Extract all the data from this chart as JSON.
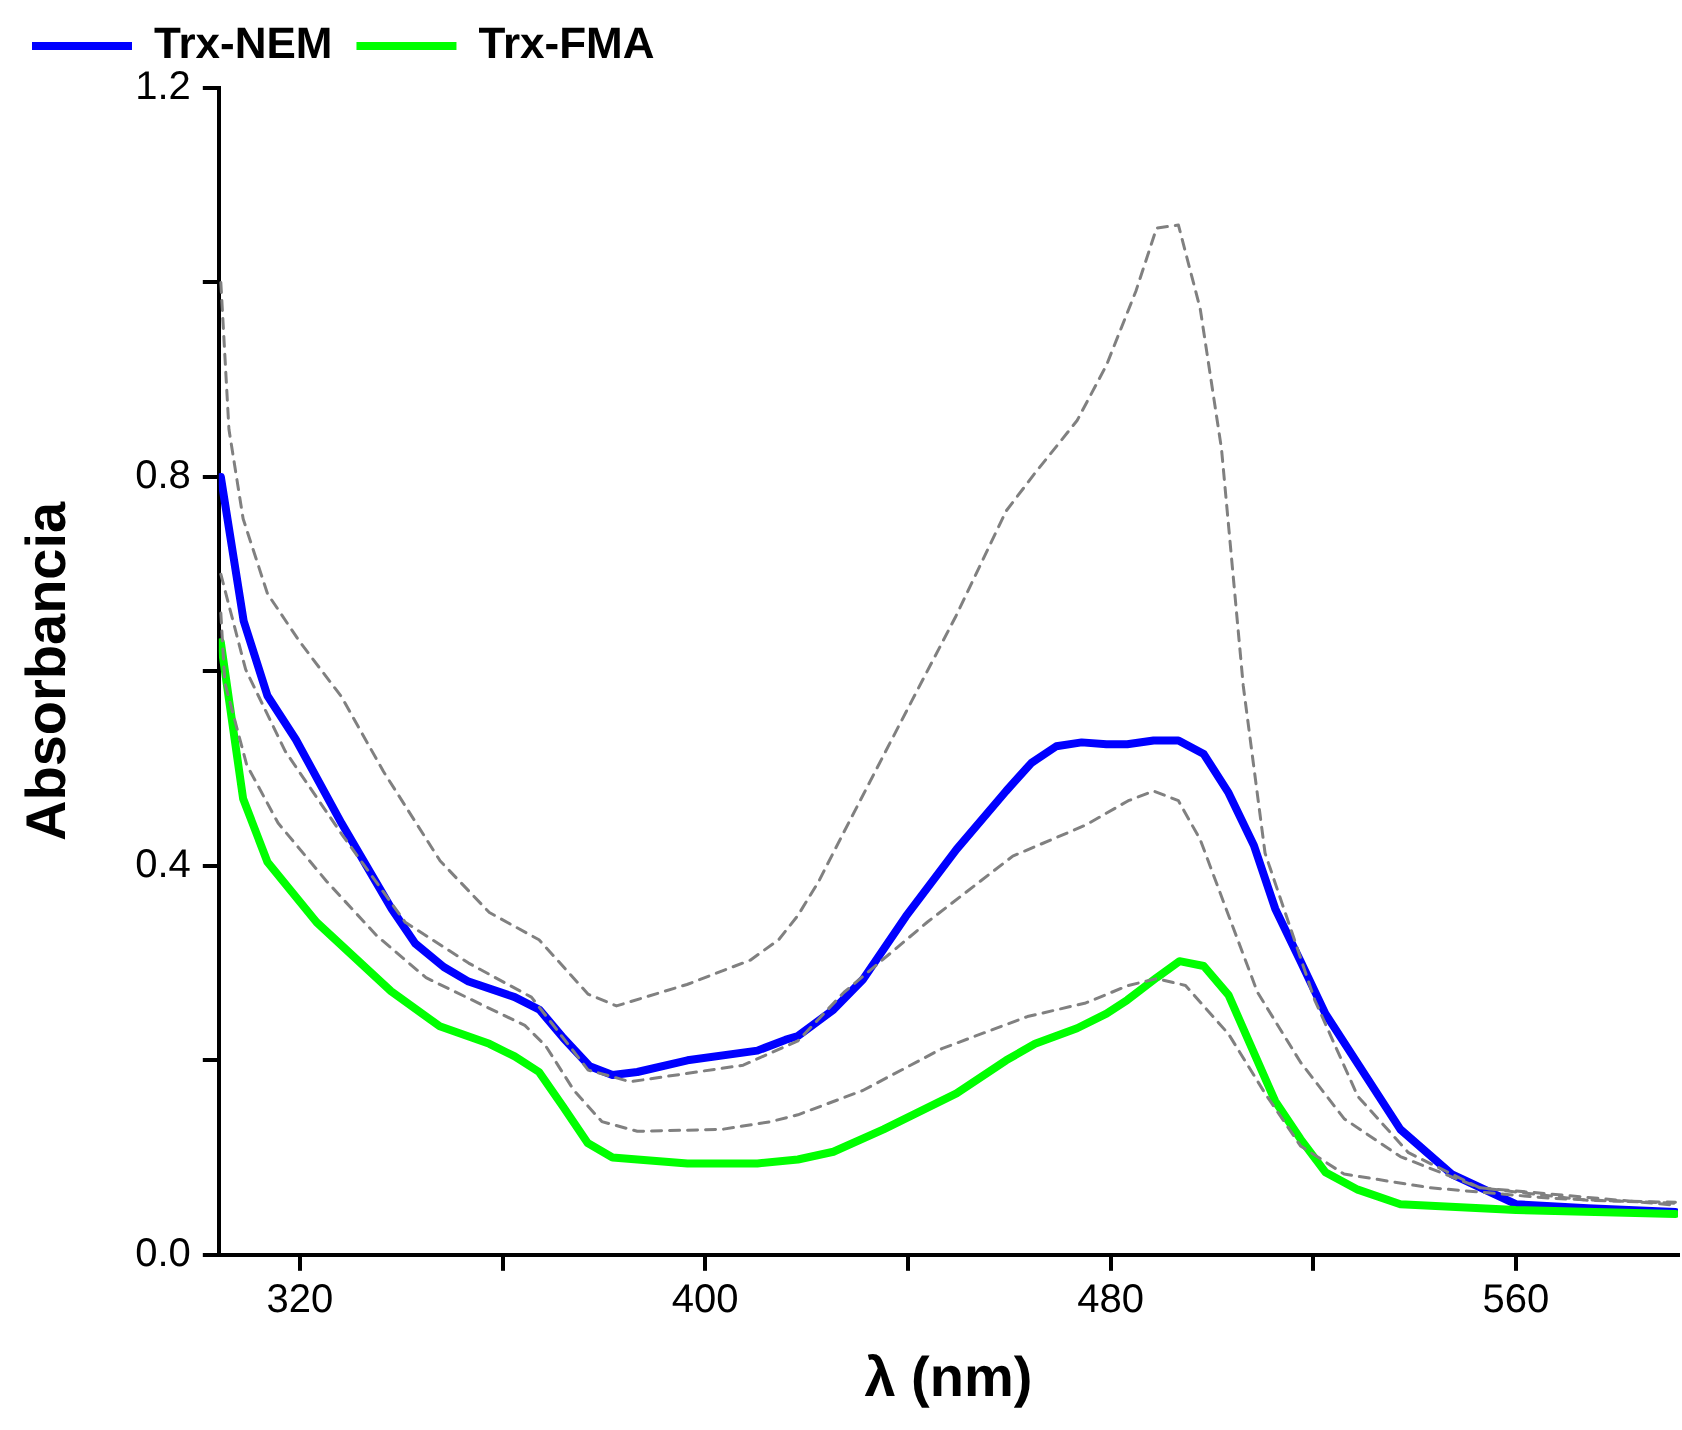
{
  "chart_data": {
    "type": "line",
    "xlabel": "λ (nm)",
    "ylabel": "Absorbancia",
    "xlim": [
      304,
      592
    ],
    "ylim": [
      0,
      1.2
    ],
    "xticks": [
      320,
      {
        "value": 360,
        "label": null
      },
      400,
      {
        "value": 440,
        "label": null
      },
      480,
      {
        "value": 520,
        "label": null
      },
      560
    ],
    "yticks": [
      {
        "value": 0,
        "label": "0.0"
      },
      {
        "value": 0.2,
        "label": null
      },
      0.4,
      {
        "value": 0.6,
        "label": null
      },
      0.8,
      {
        "value": 1.0,
        "label": null
      },
      1.2
    ],
    "grid": false,
    "legend": "top",
    "marker": "none",
    "series": [
      {
        "name": "Trx-NEM",
        "color": "#0000ff",
        "line_style": "solid",
        "x": [
          304.4,
          308.9,
          313.6,
          319.2,
          328.2,
          338.1,
          342.8,
          348.4,
          353.3,
          362.4,
          367.3,
          372.0,
          377.2,
          381.7,
          386.6,
          396.5,
          410.3,
          415.8,
          418.3,
          425.3,
          431.1,
          439.6,
          449.6,
          459.4,
          464.4,
          469.3,
          474.3,
          479.2,
          483.3,
          488.5,
          493.4,
          498.4,
          503.3,
          508.3,
          512.5,
          517.5,
          522.4,
          537.2,
          547.3,
          560.0,
          574.2,
          591.5
        ],
        "values": [
          0.8,
          0.652,
          0.575,
          0.53,
          0.444,
          0.356,
          0.32,
          0.296,
          0.281,
          0.265,
          0.252,
          0.223,
          0.194,
          0.185,
          0.188,
          0.2,
          0.21,
          0.221,
          0.225,
          0.252,
          0.283,
          0.348,
          0.417,
          0.477,
          0.506,
          0.523,
          0.527,
          0.525,
          0.525,
          0.529,
          0.529,
          0.515,
          0.475,
          0.421,
          0.356,
          0.302,
          0.248,
          0.129,
          0.083,
          0.052,
          0.048,
          0.044
        ]
      },
      {
        "name": "Trx-FMA",
        "color": "#00ff00",
        "line_style": "solid",
        "x": [
          304.4,
          308.8,
          313.6,
          323.3,
          338,
          347.6,
          357.4,
          362.4,
          367.2,
          372,
          376.8,
          381.7,
          396.5,
          410.3,
          418.3,
          425.3,
          435.2,
          449.6,
          459.4,
          465.1,
          473.4,
          479.2,
          483.3,
          489.1,
          493.6,
          498.4,
          503.3,
          512.5,
          517.5,
          522.4,
          528.8,
          537.2,
          560,
          591.5
        ],
        "values": [
          0.63,
          0.469,
          0.404,
          0.342,
          0.271,
          0.235,
          0.217,
          0.204,
          0.188,
          0.152,
          0.115,
          0.1,
          0.094,
          0.094,
          0.098,
          0.106,
          0.129,
          0.166,
          0.2,
          0.217,
          0.233,
          0.248,
          0.262,
          0.285,
          0.302,
          0.297,
          0.267,
          0.158,
          0.119,
          0.085,
          0.067,
          0.052,
          0.046,
          0.042
        ]
      },
      {
        "color": "#808080",
        "line_style": "dashed",
        "x": [
          304.4,
          306.0,
          308.8,
          313.6,
          319.9,
          328.2,
          336.5,
          347.7,
          357.4,
          367.2,
          376.9,
          382.5,
          396.4,
          408.9,
          414.5,
          418.3,
          422.4,
          427.4,
          440.9,
          449.5,
          459.4,
          465.1,
          473.4,
          479.2,
          485.0,
          489.1,
          493.4,
          497.7,
          501.9,
          506.2,
          510.5,
          516.1,
          520.3,
          528.8,
          538.8,
          552.8,
          574.2,
          591.5
        ],
        "values": [
          1.0,
          0.849,
          0.757,
          0.68,
          0.631,
          0.574,
          0.497,
          0.405,
          0.352,
          0.324,
          0.268,
          0.256,
          0.278,
          0.303,
          0.324,
          0.349,
          0.384,
          0.435,
          0.571,
          0.657,
          0.765,
          0.804,
          0.858,
          0.915,
          0.991,
          1.056,
          1.059,
          0.973,
          0.829,
          0.585,
          0.413,
          0.327,
          0.262,
          0.163,
          0.105,
          0.069,
          0.056,
          0.054
        ]
      },
      {
        "color": "#808080",
        "line_style": "dashed",
        "x": [
          304.4,
          309.3,
          317.1,
          328.2,
          340.8,
          353.3,
          365.7,
          376.9,
          385.2,
          407.5,
          418.3,
          427.4,
          443.8,
          460.7,
          475.1,
          483.5,
          488.5,
          493.4,
          497.7,
          503.3,
          509.0,
          517.5,
          526.1,
          537.2,
          552.8,
          591.5
        ],
        "values": [
          0.7,
          0.602,
          0.518,
          0.433,
          0.342,
          0.3,
          0.265,
          0.19,
          0.178,
          0.195,
          0.22,
          0.27,
          0.342,
          0.41,
          0.442,
          0.467,
          0.477,
          0.467,
          0.427,
          0.349,
          0.27,
          0.198,
          0.14,
          0.101,
          0.069,
          0.051
        ]
      },
      {
        "color": "#808080",
        "line_style": "dashed",
        "x": [
          304.4,
          305.2,
          309.5,
          315.7,
          325.3,
          335.2,
          344.9,
          356.0,
          364.4,
          368.5,
          374.1,
          379.6,
          386.6,
          403.3,
          413.0,
          418.3,
          431.1,
          446.7,
          463.6,
          475.1,
          483.5,
          489.1,
          494.8,
          503.3,
          510.5,
          517.5,
          526.1,
          543.0,
          567.1,
          591.5
        ],
        "values": [
          0.66,
          0.588,
          0.504,
          0.444,
          0.384,
          0.328,
          0.285,
          0.257,
          0.236,
          0.215,
          0.169,
          0.137,
          0.127,
          0.129,
          0.137,
          0.144,
          0.169,
          0.212,
          0.245,
          0.259,
          0.277,
          0.284,
          0.277,
          0.227,
          0.166,
          0.112,
          0.083,
          0.069,
          0.058,
          0.053
        ]
      }
    ]
  }
}
